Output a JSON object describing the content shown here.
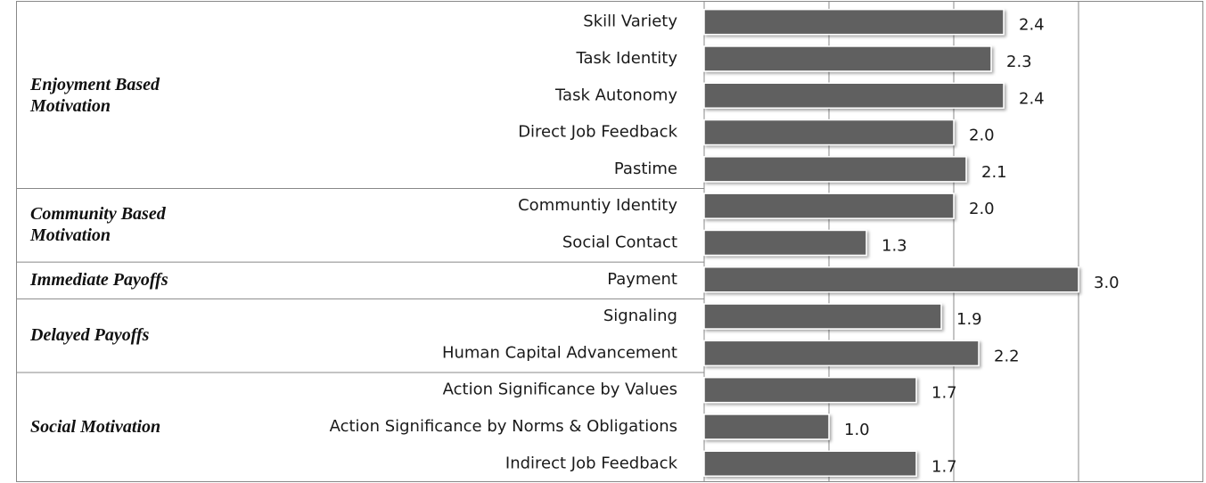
{
  "chart_data": {
    "type": "bar",
    "orientation": "horizontal",
    "color": "#606060",
    "xlim": [
      0,
      4
    ],
    "xticks": [
      1,
      2,
      3
    ],
    "grid": true,
    "groups": [
      {
        "name": "Enjoyment Based Motivation",
        "categories": [
          "Skill Variety",
          "Task Identity",
          "Task Autonomy",
          "Direct Job Feedback",
          "Pastime"
        ],
        "values": [
          2.4,
          2.3,
          2.4,
          2.0,
          2.1
        ],
        "value_labels": [
          "2.4",
          "2.3",
          "2.4",
          "2.0",
          "2.1"
        ]
      },
      {
        "name": "Community Based Motivation",
        "categories": [
          "Communtiy Identity",
          "Social Contact"
        ],
        "values": [
          2.0,
          1.3
        ],
        "value_labels": [
          "2.0",
          "1.3"
        ]
      },
      {
        "name": "Immediate Payoffs",
        "categories": [
          "Payment"
        ],
        "values": [
          3.0
        ],
        "value_labels": [
          "3.0"
        ]
      },
      {
        "name": "Delayed Payoffs",
        "categories": [
          "Signaling",
          "Human Capital Advancement"
        ],
        "values": [
          1.9,
          2.2
        ],
        "value_labels": [
          "1.9",
          "2.2"
        ]
      },
      {
        "name": "Social Motivation",
        "categories": [
          "Action Significance by Values",
          "Action Significance by Norms & Obligations",
          "Indirect Job Feedback"
        ],
        "values": [
          1.7,
          1.0,
          1.7
        ],
        "value_labels": [
          "1.7",
          "1.0",
          "1.7"
        ]
      }
    ]
  }
}
